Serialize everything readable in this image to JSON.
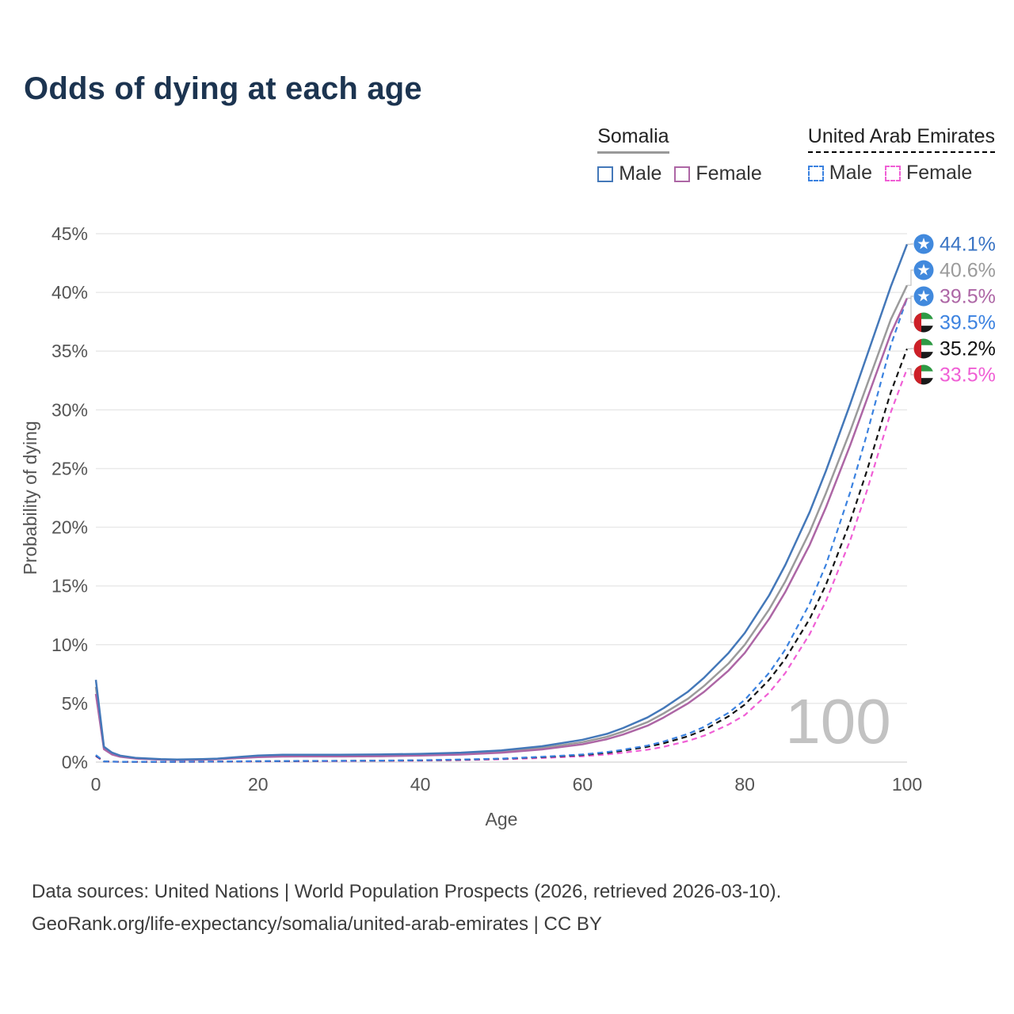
{
  "page": {
    "title": "Odds of dying at each age",
    "footer_line1": "Data sources: United Nations | World Population Prospects (2026, retrieved 2026-03-10).",
    "footer_line2": "GeoRank.org/life-expectancy/somalia/united-arab-emirates | CC BY"
  },
  "legend": {
    "groups": [
      {
        "label": "Somalia",
        "underline_style": "solid",
        "underline_color": "#999999",
        "items": [
          {
            "label": "Male",
            "color": "#4478b9",
            "dash": false
          },
          {
            "label": "Female",
            "color": "#ad66a5",
            "dash": false
          }
        ]
      },
      {
        "label": "United Arab Emirates",
        "underline_style": "dashed",
        "underline_color": "#000000",
        "items": [
          {
            "label": "Male",
            "color": "#3b82e0",
            "dash": true
          },
          {
            "label": "Female",
            "color": "#f05fd5",
            "dash": true
          }
        ]
      }
    ]
  },
  "flags": {
    "somalia": {
      "bg": "#4189dd",
      "star": "#ffffff"
    },
    "uae": {
      "red": "#cd2028",
      "green": "#2f9a44",
      "white": "#ffffff",
      "black": "#1a1a1a"
    }
  },
  "chart_data": {
    "type": "line",
    "title": "Odds of dying at each age",
    "xlabel": "Age",
    "ylabel": "Probability of dying",
    "xlim": [
      0,
      100
    ],
    "ylim": [
      0,
      45
    ],
    "x_ticks": [
      0,
      20,
      40,
      60,
      80,
      100
    ],
    "y_ticks": [
      0,
      5,
      10,
      15,
      20,
      25,
      30,
      35,
      40,
      45
    ],
    "grid": "horizontal",
    "legend_position": "top-right",
    "watermark": "100",
    "x": [
      0,
      1,
      2,
      3,
      5,
      8,
      10,
      13,
      15,
      18,
      20,
      23,
      25,
      30,
      35,
      40,
      45,
      50,
      55,
      60,
      63,
      65,
      68,
      70,
      73,
      75,
      78,
      80,
      83,
      85,
      88,
      90,
      93,
      95,
      98,
      100
    ],
    "series": [
      {
        "id": "somalia-male",
        "name": "Somalia Male",
        "color": "#4478b9",
        "dash": false,
        "badge": "somalia-flag",
        "end_label": "44.1%",
        "end_value": 44.1,
        "label_color": "#3a74c4",
        "values": [
          7.0,
          1.3,
          0.8,
          0.55,
          0.35,
          0.25,
          0.22,
          0.25,
          0.3,
          0.45,
          0.55,
          0.62,
          0.63,
          0.63,
          0.65,
          0.7,
          0.8,
          1.0,
          1.35,
          1.9,
          2.4,
          2.9,
          3.8,
          4.6,
          6.0,
          7.2,
          9.3,
          11.0,
          14.2,
          16.8,
          21.3,
          24.8,
          30.5,
          34.5,
          40.5,
          44.1
        ]
      },
      {
        "id": "somalia-all",
        "name": "Somalia",
        "color": "#9b9b9b",
        "dash": false,
        "badge": "somalia-flag",
        "end_label": "40.6%",
        "end_value": 40.6,
        "label_color": "#9b9b9b",
        "values": [
          6.4,
          1.2,
          0.72,
          0.5,
          0.32,
          0.23,
          0.2,
          0.22,
          0.27,
          0.4,
          0.48,
          0.54,
          0.55,
          0.55,
          0.57,
          0.62,
          0.72,
          0.9,
          1.2,
          1.7,
          2.15,
          2.6,
          3.4,
          4.15,
          5.4,
          6.5,
          8.4,
          10.0,
          13.0,
          15.4,
          19.6,
          22.9,
          28.2,
          32.0,
          37.7,
          40.6
        ]
      },
      {
        "id": "somalia-female",
        "name": "Somalia Female",
        "color": "#ad66a5",
        "dash": false,
        "badge": "somalia-flag",
        "end_label": "39.5%",
        "end_value": 39.5,
        "label_color": "#ad66a5",
        "values": [
          5.8,
          1.1,
          0.65,
          0.45,
          0.3,
          0.21,
          0.18,
          0.2,
          0.24,
          0.35,
          0.42,
          0.47,
          0.48,
          0.48,
          0.5,
          0.55,
          0.64,
          0.8,
          1.08,
          1.52,
          1.95,
          2.35,
          3.1,
          3.8,
          5.0,
          6.0,
          7.8,
          9.3,
          12.2,
          14.5,
          18.5,
          21.7,
          27.0,
          30.8,
          36.5,
          39.5
        ]
      },
      {
        "id": "uae-male",
        "name": "United Arab Emirates Male",
        "color": "#3b82e0",
        "dash": true,
        "badge": "uae-flag",
        "end_label": "39.5%",
        "end_value": 39.5,
        "label_color": "#3b82e0",
        "values": [
          0.6,
          0.06,
          0.04,
          0.03,
          0.03,
          0.03,
          0.03,
          0.04,
          0.05,
          0.07,
          0.08,
          0.09,
          0.1,
          0.11,
          0.13,
          0.16,
          0.22,
          0.3,
          0.45,
          0.65,
          0.85,
          1.05,
          1.4,
          1.75,
          2.4,
          3.0,
          4.2,
          5.3,
          7.6,
          9.6,
          13.5,
          16.8,
          23.0,
          27.8,
          35.5,
          39.5
        ]
      },
      {
        "id": "uae-all",
        "name": "United Arab Emirates",
        "color": "#121212",
        "dash": true,
        "badge": "uae-flag",
        "end_label": "35.2%",
        "end_value": 35.2,
        "label_color": "#111111",
        "values": [
          0.55,
          0.055,
          0.04,
          0.03,
          0.03,
          0.03,
          0.03,
          0.035,
          0.045,
          0.06,
          0.07,
          0.08,
          0.09,
          0.1,
          0.12,
          0.15,
          0.2,
          0.28,
          0.42,
          0.6,
          0.78,
          0.97,
          1.3,
          1.6,
          2.2,
          2.75,
          3.9,
          4.9,
          7.0,
          8.8,
          12.2,
          15.1,
          20.5,
          24.7,
          31.5,
          35.2
        ]
      },
      {
        "id": "uae-female",
        "name": "United Arab Emirates Female",
        "color": "#f05fd5",
        "dash": true,
        "badge": "uae-flag",
        "end_label": "33.5%",
        "end_value": 33.5,
        "label_color": "#f05fd5",
        "values": [
          0.5,
          0.05,
          0.035,
          0.03,
          0.025,
          0.025,
          0.025,
          0.03,
          0.035,
          0.045,
          0.055,
          0.065,
          0.07,
          0.08,
          0.1,
          0.12,
          0.17,
          0.24,
          0.35,
          0.5,
          0.65,
          0.8,
          1.05,
          1.3,
          1.8,
          2.25,
          3.2,
          4.0,
          5.9,
          7.6,
          10.9,
          13.7,
          18.9,
          23.0,
          29.8,
          33.5
        ]
      }
    ]
  }
}
